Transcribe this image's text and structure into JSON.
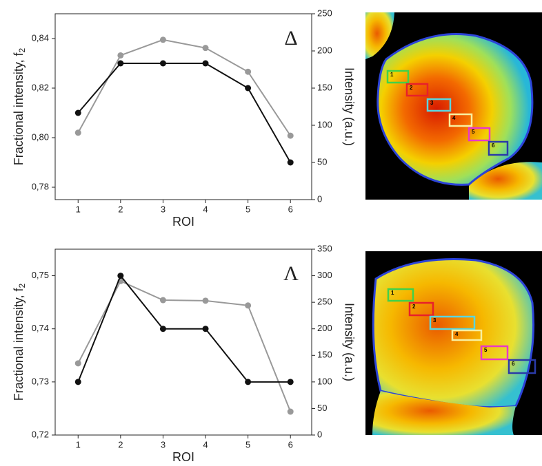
{
  "chart_data": [
    {
      "type": "line",
      "annotation": "Δ",
      "x_label": "ROI",
      "y_label": "Fractional intensity, f",
      "y_label_subscript": "2",
      "y2_label": "Intensity (a.u.)",
      "x": [
        1,
        2,
        3,
        4,
        5,
        6
      ],
      "xlim": [
        0.46,
        6.5
      ],
      "xticks": [
        1,
        2,
        3,
        4,
        5,
        6
      ],
      "ylim": [
        0.775,
        0.85
      ],
      "yticks": [
        {
          "value": 0.78,
          "label": "0,78"
        },
        {
          "value": 0.8,
          "label": "0,80"
        },
        {
          "value": 0.82,
          "label": "0,82"
        },
        {
          "value": 0.84,
          "label": "0,84"
        }
      ],
      "y2lim": [
        0,
        250
      ],
      "y2ticks": [
        0,
        50,
        100,
        150,
        200,
        250
      ],
      "series": [
        {
          "color": "#111111",
          "values": [
            0.81,
            0.83,
            0.83,
            0.83,
            0.82,
            0.79
          ]
        },
        {
          "color": "#999999",
          "axis": "y2",
          "values": [
            90,
            194,
            215,
            204,
            172,
            86
          ]
        }
      ],
      "roi_labels": [
        "1",
        "2",
        "3",
        "4",
        "5",
        "6"
      ]
    },
    {
      "type": "line",
      "annotation": "Λ",
      "x_label": "ROI",
      "y_label": "Fractional intensity, f",
      "y_label_subscript": "2",
      "y2_label": "Intensity (a.u.)",
      "x": [
        1,
        2,
        3,
        4,
        5,
        6
      ],
      "xlim": [
        0.46,
        6.5
      ],
      "xticks": [
        1,
        2,
        3,
        4,
        5,
        6
      ],
      "ylim": [
        0.72,
        0.755
      ],
      "yticks": [
        {
          "value": 0.72,
          "label": "0,72"
        },
        {
          "value": 0.73,
          "label": "0,73"
        },
        {
          "value": 0.74,
          "label": "0,74"
        },
        {
          "value": 0.75,
          "label": "0,75"
        }
      ],
      "y2lim": [
        0,
        350
      ],
      "y2ticks": [
        0,
        50,
        100,
        150,
        200,
        250,
        300,
        350
      ],
      "series": [
        {
          "color": "#111111",
          "values": [
            0.73,
            0.75,
            0.74,
            0.74,
            0.73,
            0.73
          ]
        },
        {
          "color": "#999999",
          "axis": "y2",
          "values": [
            135,
            290,
            254,
            253,
            244,
            44
          ]
        }
      ],
      "roi_labels": [
        "1",
        "2",
        "3",
        "4",
        "5",
        "6"
      ]
    }
  ]
}
